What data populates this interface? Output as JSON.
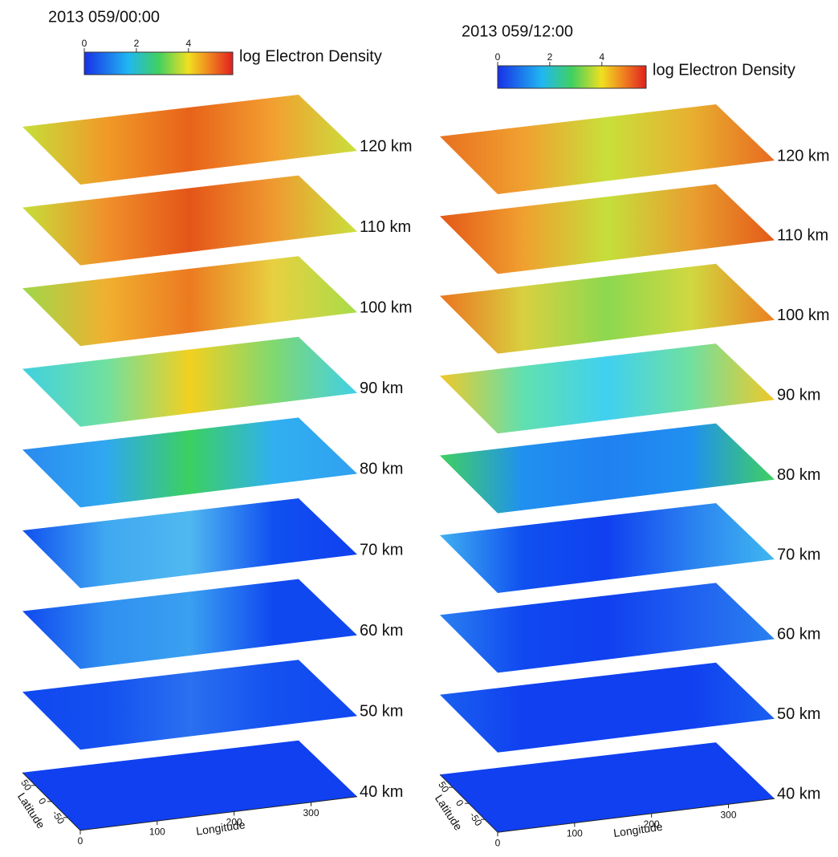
{
  "panels": [
    {
      "title": "2013 059/00:00",
      "colorbar": {
        "label": "log Electron Density",
        "ticks": [
          0,
          2,
          4
        ],
        "range": [
          0,
          5.7
        ]
      },
      "levels": [
        "120 km",
        "110 km",
        "100 km",
        "90 km",
        "80 km",
        "70 km",
        "60 km",
        "50 km",
        "40 km"
      ],
      "latitude": {
        "label": "Latitude",
        "ticks": [
          50,
          0,
          -50
        ],
        "range": [
          -90,
          90
        ]
      },
      "longitude": {
        "label": "Longitude",
        "ticks": [
          0,
          100,
          200,
          300
        ],
        "range": [
          0,
          360
        ]
      }
    },
    {
      "title": "2013 059/12:00",
      "colorbar": {
        "label": "log Electron Density",
        "ticks": [
          0,
          2,
          4
        ],
        "range": [
          0,
          5.7
        ]
      },
      "levels": [
        "120 km",
        "110 km",
        "100 km",
        "90 km",
        "80 km",
        "70 km",
        "60 km",
        "50 km",
        "40 km"
      ],
      "latitude": {
        "label": "Latitude",
        "ticks": [
          50,
          0,
          -50
        ],
        "range": [
          -90,
          90
        ]
      },
      "longitude": {
        "label": "Longitude",
        "ticks": [
          0,
          100,
          200,
          300
        ],
        "range": [
          0,
          360
        ]
      }
    }
  ]
}
